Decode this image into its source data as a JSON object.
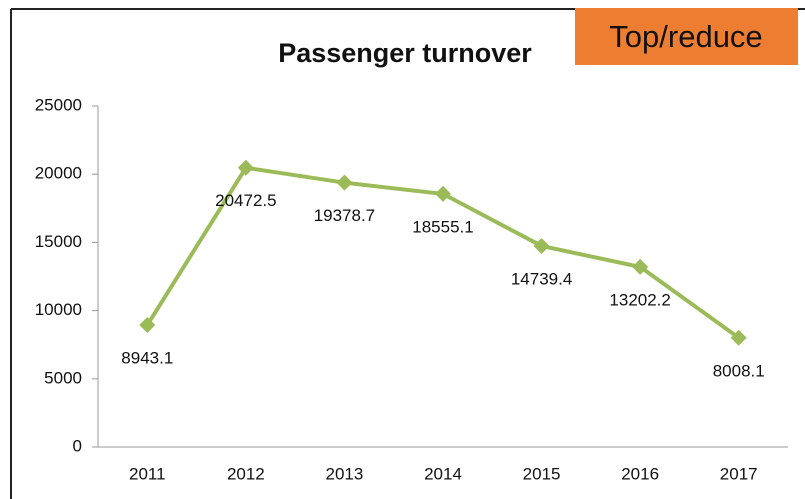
{
  "chart_data": {
    "type": "line",
    "title": "Passenger turnover",
    "annotation": "Top/reduce",
    "categories": [
      "2011",
      "2012",
      "2013",
      "2014",
      "2015",
      "2016",
      "2017"
    ],
    "series": [
      {
        "color": "#9bbb59",
        "values": [
          8943.1,
          20472.5,
          19378.7,
          18555.1,
          14739.4,
          13202.2,
          8008.1
        ]
      }
    ],
    "ylim": [
      0,
      25000
    ],
    "yticks": [
      0,
      5000,
      10000,
      15000,
      20000,
      25000
    ],
    "grid": false
  }
}
